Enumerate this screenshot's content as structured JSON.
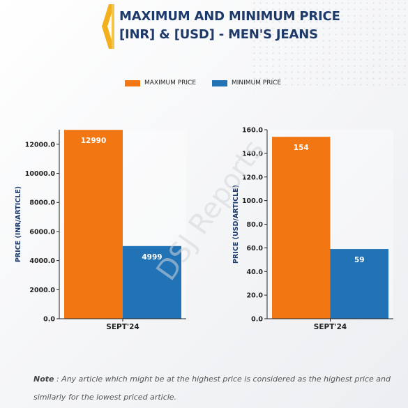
{
  "title_line1": "MAXIMUM AND MINIMUM PRICE",
  "title_line2": "[INR] & [USD] - MEN'S JEANS",
  "legend": [
    {
      "label": "MAXIMUM PRICE",
      "color": "#f27612"
    },
    {
      "label": "MINIMUM PRICE",
      "color": "#2273b6"
    }
  ],
  "watermark": "DSJ Reports",
  "note": {
    "prefix": "Note",
    "text": " : Any article which might be at the highest price is considered as the highest price and similarly for the lowest priced article."
  },
  "chart_data": [
    {
      "type": "bar",
      "categories": [
        "SEPT'24"
      ],
      "series": [
        {
          "name": "MAXIMUM PRICE",
          "values": [
            12990
          ],
          "color": "#f27612"
        },
        {
          "name": "MINIMUM PRICE",
          "values": [
            4999
          ],
          "color": "#2273b6"
        }
      ],
      "data_labels": [
        "12990",
        "4999"
      ],
      "ylabel": "PRICE (INR/ARTICLE)",
      "xlabel": "",
      "ylim": [
        0,
        13000
      ],
      "yticks": [
        "0.0",
        "2000.0",
        "4000.0",
        "6000.0",
        "8000.0",
        "10000.0",
        "12000.0"
      ],
      "ytick_values": [
        0,
        2000,
        4000,
        6000,
        8000,
        10000,
        12000
      ],
      "grid": false
    },
    {
      "type": "bar",
      "categories": [
        "SEPT'24"
      ],
      "series": [
        {
          "name": "MAXIMUM PRICE",
          "values": [
            154
          ],
          "color": "#f27612"
        },
        {
          "name": "MINIMUM PRICE",
          "values": [
            59
          ],
          "color": "#2273b6"
        }
      ],
      "data_labels": [
        "154",
        "59"
      ],
      "ylabel": "PRICE (USD/ARTICLE)",
      "xlabel": "",
      "ylim": [
        0,
        160
      ],
      "yticks": [
        "0.0",
        "20.0",
        "40.0",
        "60.0",
        "80.0",
        "100.0",
        "120.0",
        "140.0",
        "160.0"
      ],
      "ytick_values": [
        0,
        20,
        40,
        60,
        80,
        100,
        120,
        140,
        160
      ],
      "grid": false
    }
  ]
}
